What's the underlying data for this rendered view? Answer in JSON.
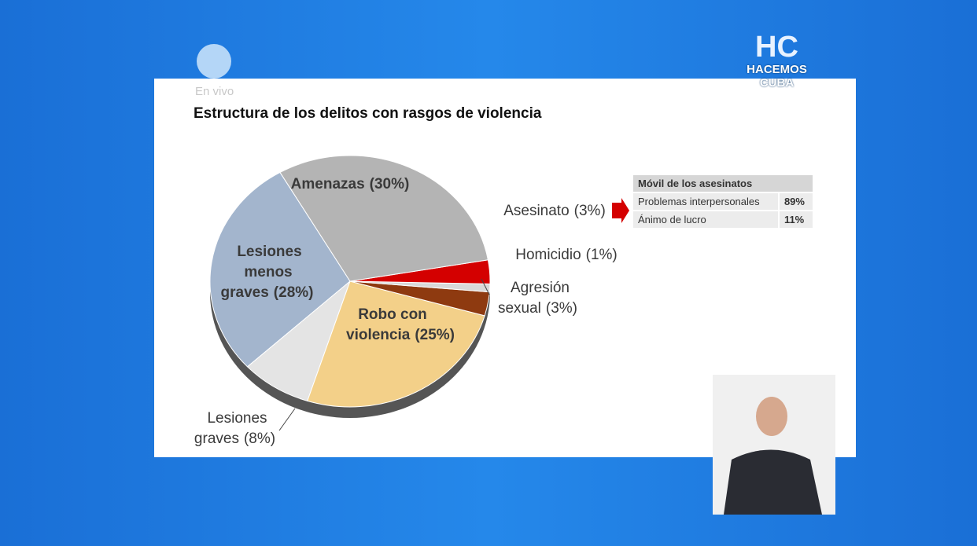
{
  "chart_data": {
    "type": "pie",
    "title": "Estructura de los delitos con rasgos de violencia",
    "categories": [
      "Amenazas",
      "Asesinato",
      "Homicidio",
      "Agresión sexual",
      "Robo con violencia",
      "Lesiones graves",
      "Lesiones menos graves"
    ],
    "values": [
      30,
      3,
      1,
      3,
      25,
      8,
      28
    ],
    "value_labels": [
      "(30%)",
      "(3%)",
      "(1%)",
      "(3%)",
      "(25%)",
      "(8%)",
      "(28%)"
    ],
    "colors": [
      "#b4b4b4",
      "#d40000",
      "#d9d9d9",
      "#8e3a10",
      "#f3d089",
      "#e4e4e4",
      "#a3b5cd"
    ]
  },
  "table": {
    "title": "Móvil de los asesinatos",
    "rows": [
      [
        "Problemas interpersonales",
        "89%"
      ],
      [
        "Ánimo de lucro",
        "11%"
      ]
    ]
  },
  "overlay": {
    "live": "En vivo",
    "logo_mark": "HC",
    "logo_name": "HACEMOS CUBA"
  }
}
